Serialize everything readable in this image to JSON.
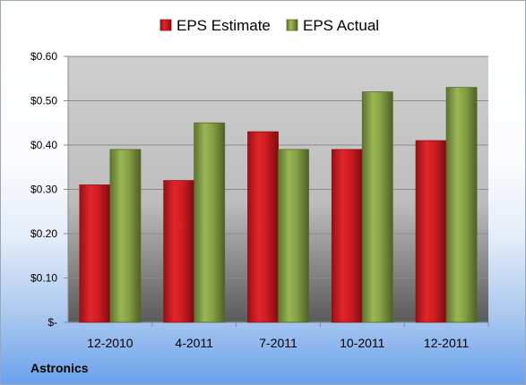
{
  "company": "Astronics",
  "colors": {
    "estimate": "#c8171c",
    "estimate_dark": "#8e0f12",
    "actual": "#7f9a3e",
    "actual_dark": "#56692a"
  },
  "chart_data": {
    "type": "bar",
    "title": "",
    "xlabel": "",
    "ylabel": "",
    "categories": [
      "12-2010",
      "4-2011",
      "7-2011",
      "10-2011",
      "12-2011"
    ],
    "series": [
      {
        "name": "EPS Estimate",
        "values": [
          0.31,
          0.32,
          0.43,
          0.39,
          0.41
        ]
      },
      {
        "name": "EPS Actual",
        "values": [
          0.39,
          0.45,
          0.39,
          0.52,
          0.53
        ]
      }
    ],
    "ylim": [
      0,
      0.6
    ],
    "yticks": [
      0,
      0.1,
      0.2,
      0.3,
      0.4,
      0.5,
      0.6
    ],
    "ytick_labels": [
      "$-",
      "$0.10",
      "$0.20",
      "$0.30",
      "$0.40",
      "$0.50",
      "$0.60"
    ],
    "grid": true,
    "legend": "top-center"
  }
}
